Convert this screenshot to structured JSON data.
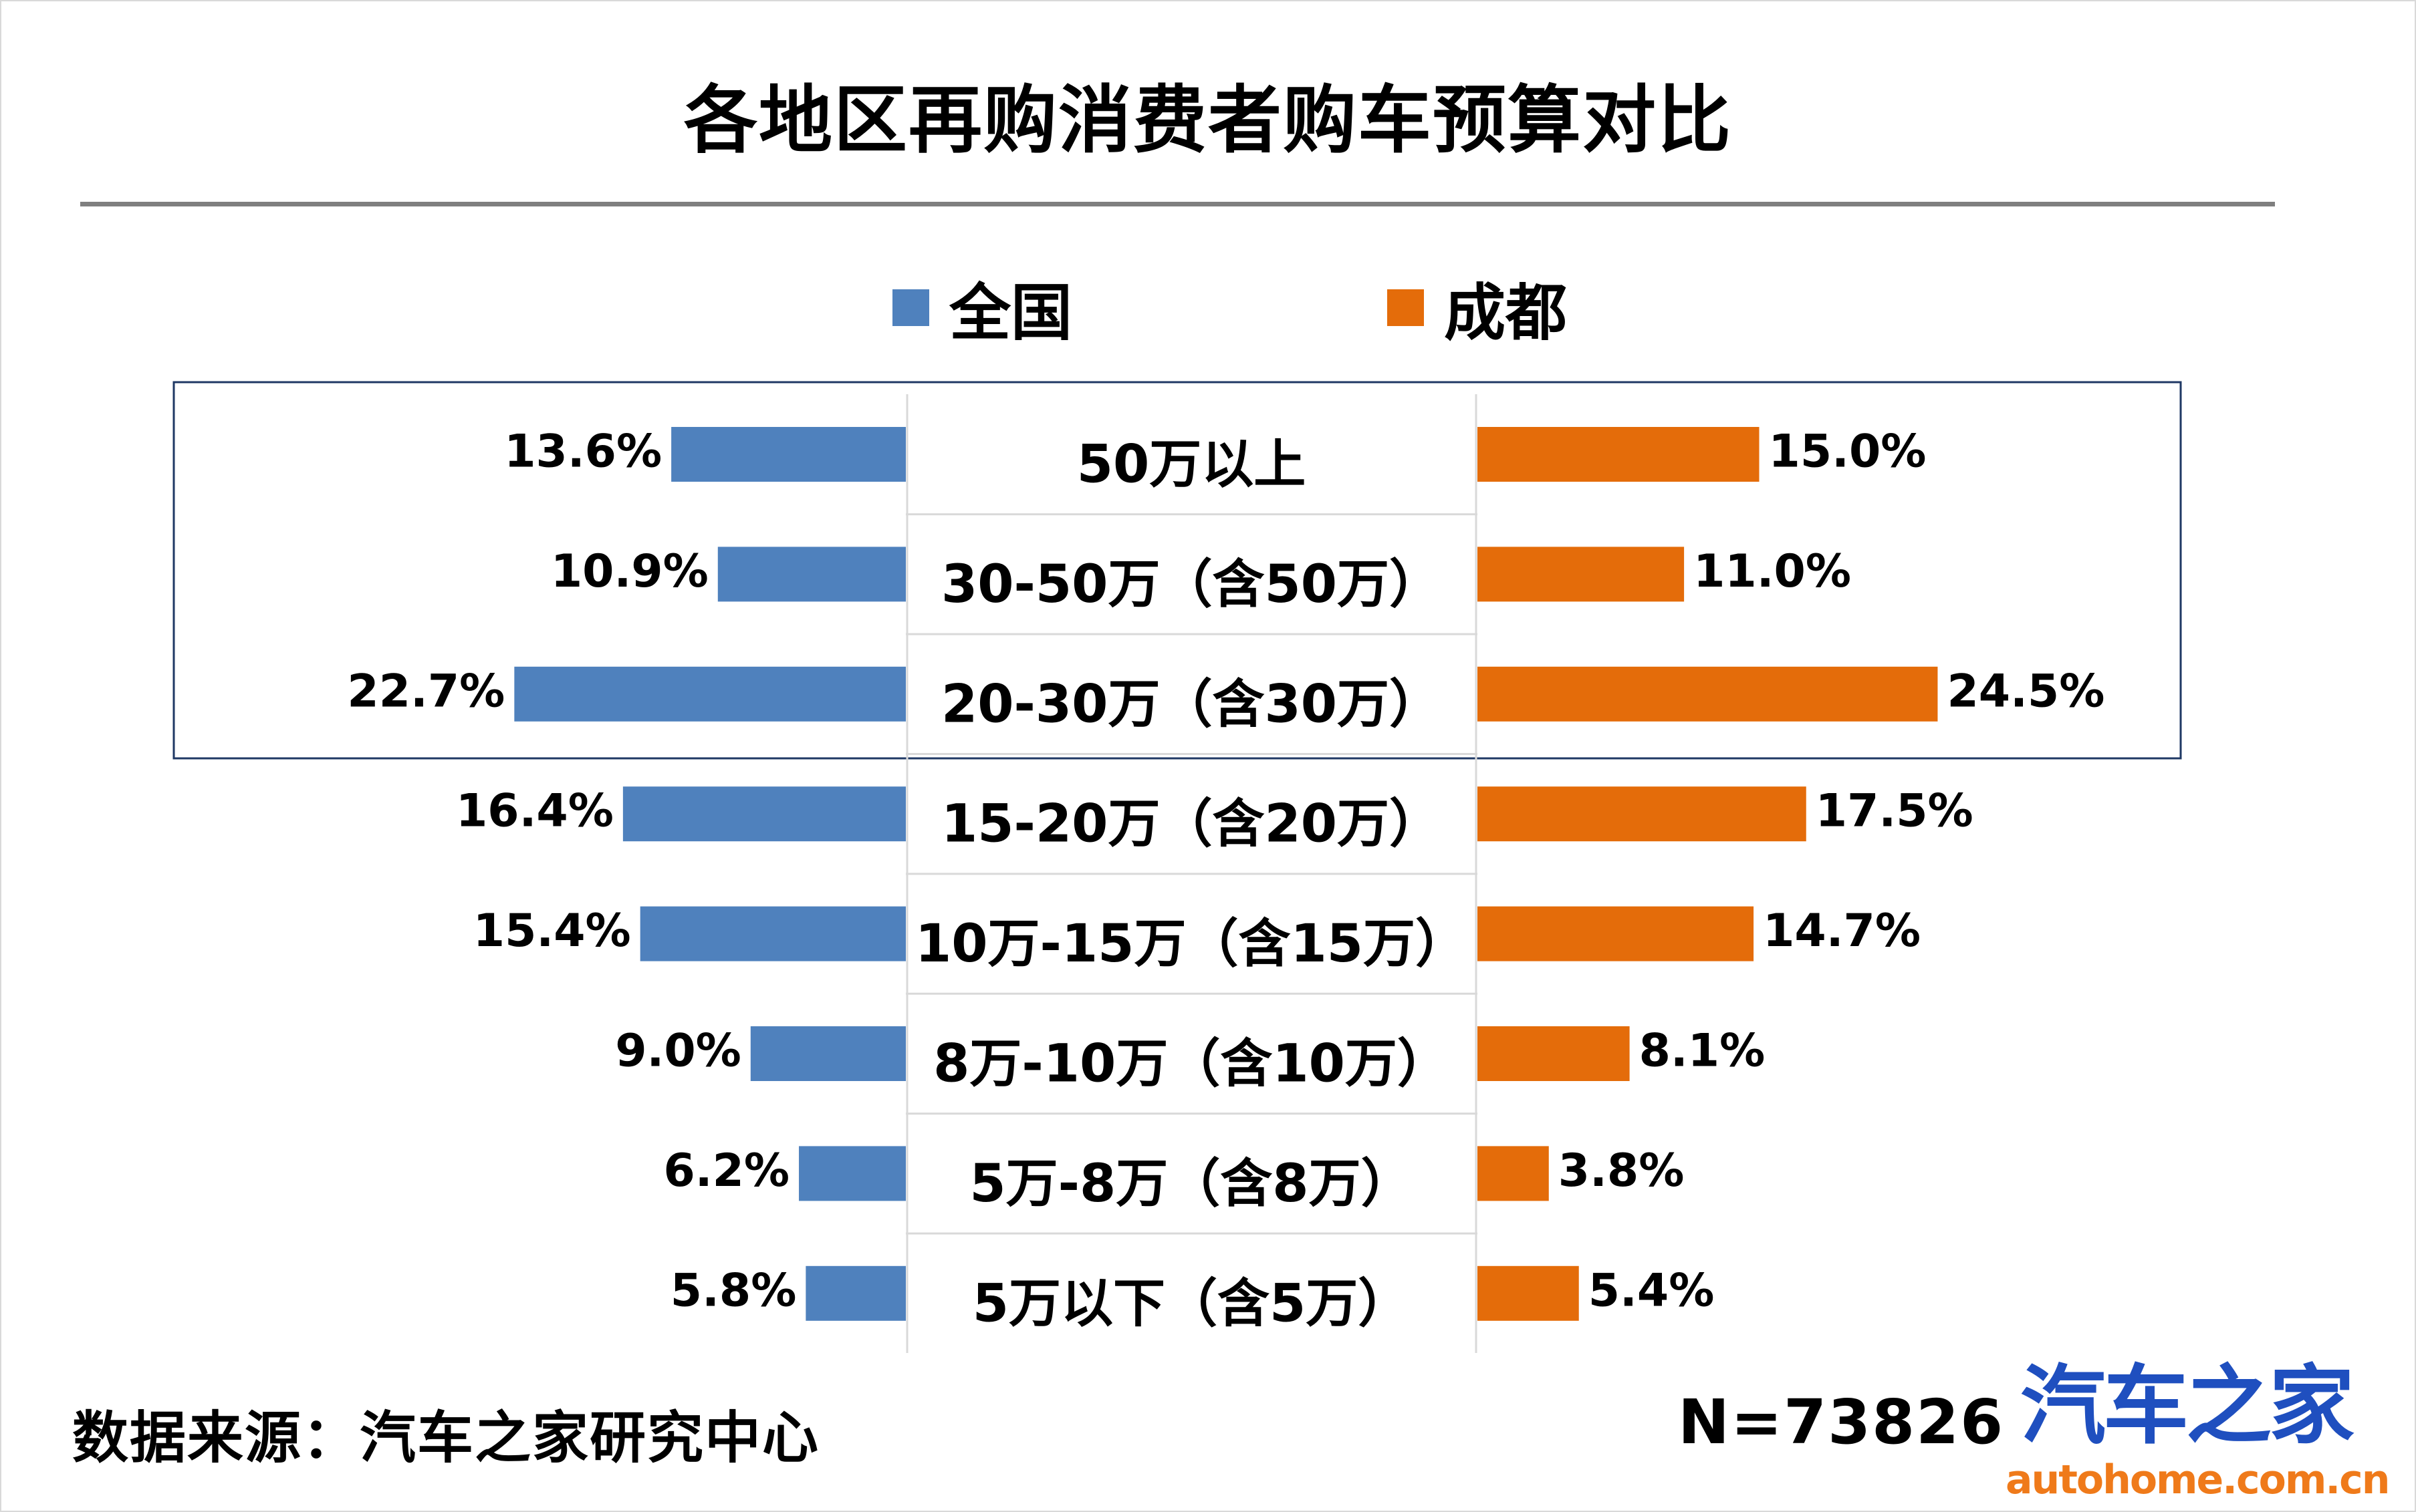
{
  "title": "各地区再购消费者购车预算对比",
  "legend": {
    "national": "全国",
    "chengdu": "成都"
  },
  "colors": {
    "national": "#4f81bd",
    "chengdu": "#e46c0a",
    "highlight_box": "#1f3864",
    "rule": "#7f7f7f"
  },
  "chart_data": {
    "type": "bar",
    "orientation": "horizontal-butterfly",
    "unit": "%",
    "categories": [
      "50万以上",
      "30-50万（含50万）",
      "20-30万（含30万）",
      "15-20万（含20万）",
      "10万-15万（含15万）",
      "8万-10万（含10万）",
      "5万-8万（含8万）",
      "5万以下（含5万）"
    ],
    "series": [
      {
        "name": "全国",
        "values": [
          13.6,
          10.9,
          22.7,
          16.4,
          15.4,
          9.0,
          6.2,
          5.8
        ],
        "labels": [
          "13.6%",
          "10.9%",
          "22.7%",
          "16.4%",
          "15.4%",
          "9.0%",
          "6.2%",
          "5.8%"
        ]
      },
      {
        "name": "成都",
        "values": [
          15.0,
          11.0,
          24.5,
          17.5,
          14.7,
          8.1,
          3.8,
          5.4
        ],
        "labels": [
          "15.0%",
          "11.0%",
          "24.5%",
          "17.5%",
          "14.7%",
          "8.1%",
          "3.8%",
          "5.4%"
        ]
      }
    ],
    "legend_position": "top",
    "highlighted_categories": [
      "50万以上",
      "30-50万（含50万）",
      "20-30万（含30万）"
    ]
  },
  "footer": {
    "source": "数据来源：汽车之家研究中心",
    "sample": "N=73826",
    "logo_cn": "汽车之家",
    "logo_en": "autohome.com.cn"
  }
}
